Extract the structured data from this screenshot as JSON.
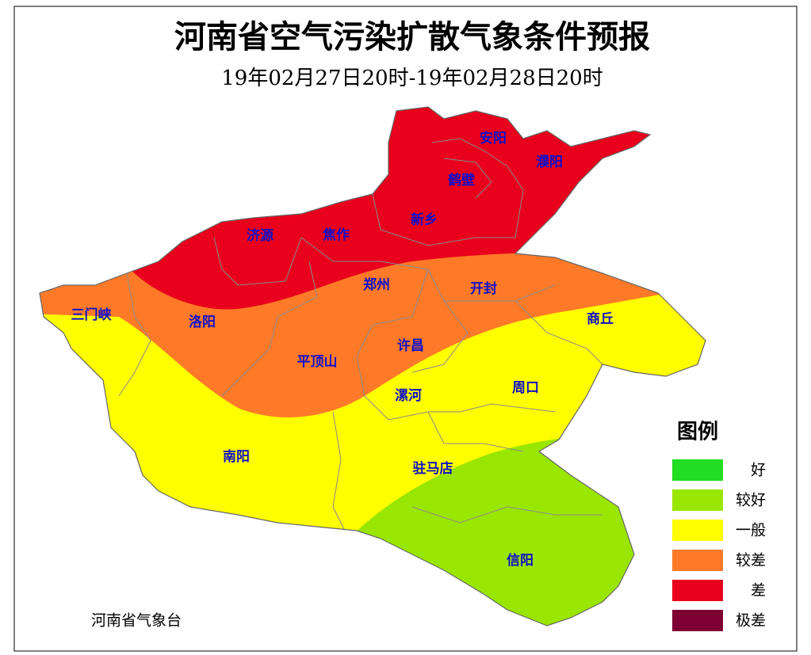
{
  "title": "河南省空气污染扩散气象条件预报",
  "subtitle": "19年02月27日20时-19年02月28日20时",
  "cities": [
    "安阳",
    "濮阳",
    "鹤壁",
    "新乡",
    "济源",
    "焦作",
    "郑州",
    "开封",
    "三门峡",
    "洛阳",
    "商丘",
    "许昌",
    "平顶山",
    "漯河",
    "周口",
    "南阳",
    "驻马店",
    "信阳"
  ],
  "legend": {
    "title": "图例",
    "items": [
      {
        "label": "好",
        "color": "#22dd22"
      },
      {
        "label": "较好",
        "color": "#99e600"
      },
      {
        "label": "一般",
        "color": "#ffff00"
      },
      {
        "label": "较差",
        "color": "#ff7a28"
      },
      {
        "label": "差",
        "color": "#e8001c"
      },
      {
        "label": "极差",
        "color": "#7e0033"
      }
    ]
  },
  "footer": "河南省气象台"
}
